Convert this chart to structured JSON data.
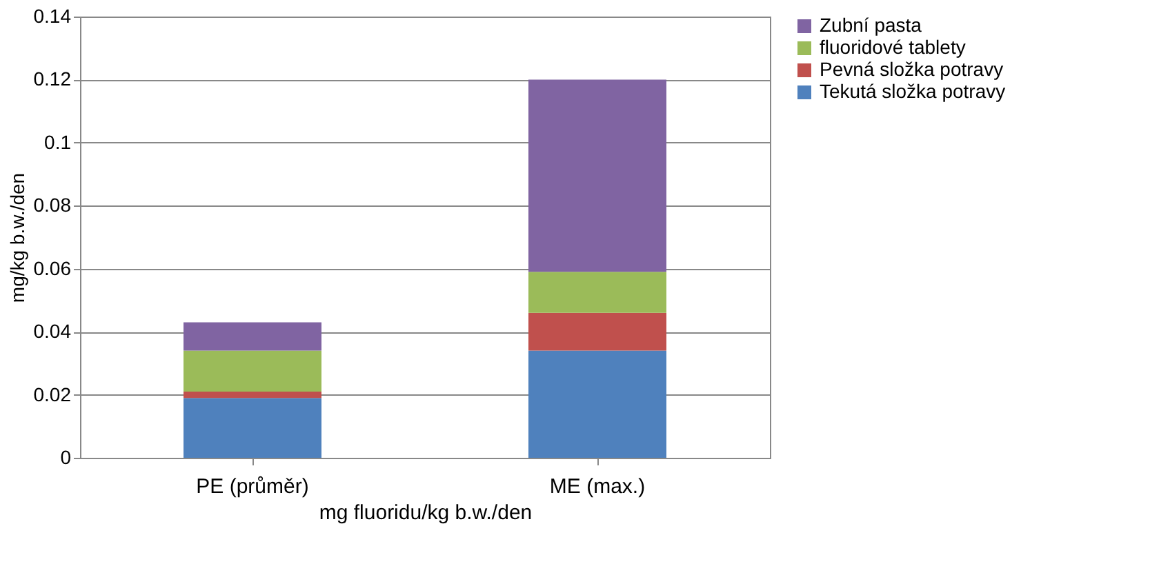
{
  "chart_data": {
    "type": "bar",
    "stacked": true,
    "xlabel": "mg fluoridu/kg b.w./den",
    "ylabel": "mg/kg b.w./den",
    "categories": [
      "PE (průměr)",
      "ME (max.)"
    ],
    "series": [
      {
        "name": "Tekutá složka potravy",
        "color": "#4f81bd",
        "values": [
          0.019,
          0.034
        ]
      },
      {
        "name": "Pevná složka potravy",
        "color": "#c0504d",
        "values": [
          0.002,
          0.012
        ]
      },
      {
        "name": "fluoridové tablety",
        "color": "#9bbb59",
        "values": [
          0.013,
          0.013
        ]
      },
      {
        "name": "Zubní pasta",
        "color": "#8064a2",
        "values": [
          0.009,
          0.061
        ]
      }
    ],
    "ylim": [
      0,
      0.14
    ],
    "yticks": [
      0,
      0.02,
      0.04,
      0.06,
      0.08,
      0.1,
      0.12,
      0.14
    ],
    "grid": "y",
    "legend": "right"
  }
}
